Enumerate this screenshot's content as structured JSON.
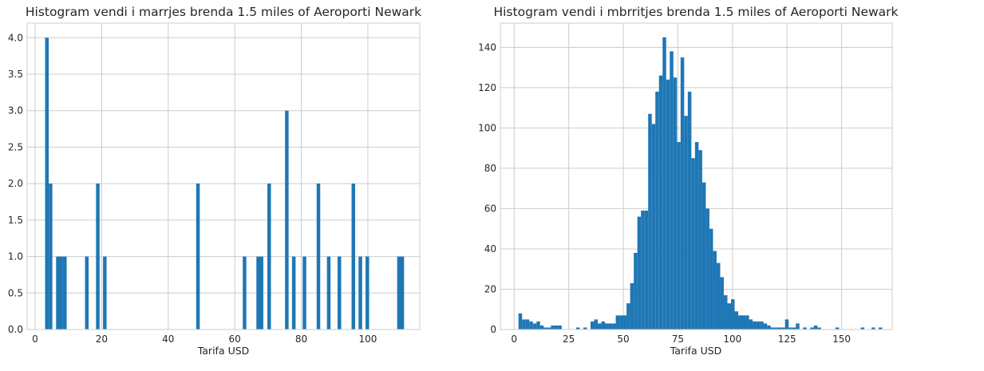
{
  "chart_data": [
    {
      "type": "bar",
      "title": "Histogram vendi i marrjes brenda 1.5 miles of Aeroporti Newark",
      "xlabel": "Tarifa USD",
      "ylabel": "",
      "xlim": [
        -2.4,
        115.6
      ],
      "ylim": [
        0,
        4.2
      ],
      "xticks": [
        0,
        20,
        40,
        60,
        80,
        100
      ],
      "yticks": [
        0.0,
        0.5,
        1.0,
        1.5,
        2.0,
        2.5,
        3.0,
        3.5,
        4.0
      ],
      "ytick_format": 1,
      "bin_width": 1.08,
      "color": "#1f77b4",
      "grid": true,
      "bins": [
        {
          "x": 3.0,
          "y": 4
        },
        {
          "x": 4.1,
          "y": 2
        },
        {
          "x": 6.3,
          "y": 1
        },
        {
          "x": 7.3,
          "y": 1
        },
        {
          "x": 8.4,
          "y": 1
        },
        {
          "x": 15.0,
          "y": 1
        },
        {
          "x": 18.3,
          "y": 2
        },
        {
          "x": 20.4,
          "y": 1
        },
        {
          "x": 48.4,
          "y": 2
        },
        {
          "x": 62.4,
          "y": 1
        },
        {
          "x": 66.5,
          "y": 1
        },
        {
          "x": 67.5,
          "y": 1
        },
        {
          "x": 69.8,
          "y": 2
        },
        {
          "x": 75.1,
          "y": 3
        },
        {
          "x": 77.2,
          "y": 1
        },
        {
          "x": 80.4,
          "y": 1
        },
        {
          "x": 84.6,
          "y": 2
        },
        {
          "x": 87.7,
          "y": 1
        },
        {
          "x": 90.9,
          "y": 1
        },
        {
          "x": 95.1,
          "y": 2
        },
        {
          "x": 97.2,
          "y": 1
        },
        {
          "x": 99.3,
          "y": 1
        },
        {
          "x": 108.8,
          "y": 1
        },
        {
          "x": 109.8,
          "y": 1
        }
      ]
    },
    {
      "type": "bar",
      "title": "Histogram vendi i mbrritjes brenda 1.5 miles of Aeroporti Newark",
      "xlabel": "Tarifa USD",
      "ylabel": "",
      "xlim": [
        -6.3,
        173.2
      ],
      "ylim": [
        0,
        152
      ],
      "xticks": [
        0,
        25,
        50,
        75,
        100,
        125,
        150
      ],
      "yticks": [
        0,
        20,
        40,
        60,
        80,
        100,
        120,
        140
      ],
      "ytick_format": 0,
      "bin_start": 2.0,
      "bin_width": 1.65,
      "color": "#1f77b4",
      "grid": true,
      "counts": [
        8,
        5,
        5,
        4,
        3,
        4,
        2,
        1,
        1,
        2,
        2,
        2,
        0,
        0,
        0,
        0,
        1,
        0,
        1,
        0,
        4,
        5,
        3,
        4,
        3,
        3,
        3,
        7,
        7,
        7,
        13,
        23,
        38,
        56,
        59,
        59,
        107,
        102,
        118,
        126,
        145,
        124,
        138,
        125,
        93,
        135,
        106,
        118,
        85,
        93,
        89,
        73,
        60,
        50,
        39,
        33,
        26,
        17,
        13,
        15,
        9,
        7,
        7,
        7,
        5,
        4,
        4,
        4,
        3,
        2,
        1,
        1,
        1,
        1,
        5,
        1,
        1,
        3,
        0,
        1,
        0,
        1,
        2,
        1,
        0,
        0,
        0,
        0,
        1,
        0,
        0,
        0,
        0,
        0,
        0,
        1,
        0,
        0,
        1,
        0,
        1
      ]
    }
  ]
}
